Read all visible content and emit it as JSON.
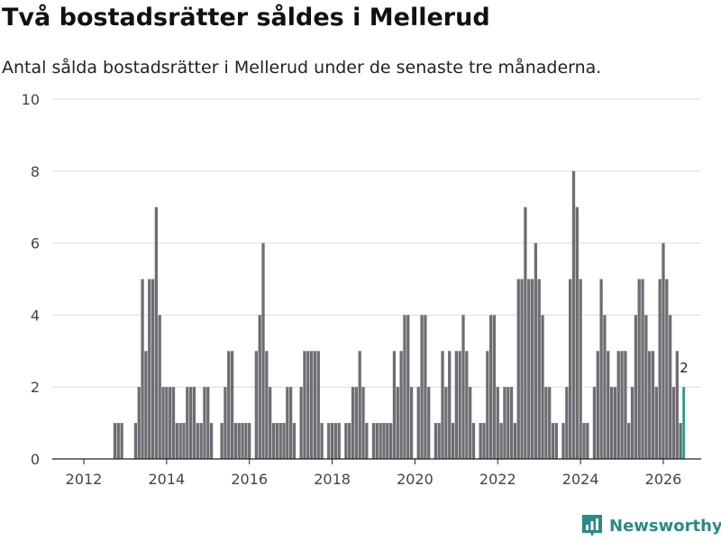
{
  "header": {
    "title": "Två bostadsrätter såldes i Mellerud",
    "subtitle": "Antal sålda bostadsrätter i Mellerud under de senaste tre månaderna."
  },
  "brand": {
    "name": "Newsworthy"
  },
  "colors": {
    "bar": "#6d6d73",
    "highlight": "#1a9b8c",
    "grid": "#dcdcdc",
    "axis": "#444444",
    "brand": "#2a8a86"
  },
  "chart_data": {
    "type": "bar",
    "title": "Två bostadsrätter såldes i Mellerud",
    "xlabel": "",
    "ylabel": "",
    "ylim": [
      0,
      10
    ],
    "yticks": [
      0,
      2,
      4,
      6,
      8,
      10
    ],
    "xticks": [
      "2012",
      "2014",
      "2016",
      "2018",
      "2020",
      "2022",
      "2024",
      "2026"
    ],
    "start_year": 2011,
    "start_month": 8,
    "highlight_label": "2",
    "values": [
      0,
      0,
      0,
      0,
      0,
      0,
      0,
      0,
      0,
      0,
      0,
      0,
      0,
      0,
      1,
      1,
      1,
      0,
      0,
      0,
      1,
      2,
      5,
      3,
      5,
      5,
      7,
      4,
      2,
      2,
      2,
      2,
      1,
      1,
      1,
      2,
      2,
      2,
      1,
      1,
      2,
      2,
      1,
      0,
      0,
      1,
      2,
      3,
      3,
      1,
      1,
      1,
      1,
      1,
      0,
      3,
      4,
      6,
      3,
      2,
      1,
      1,
      1,
      1,
      2,
      2,
      1,
      0,
      2,
      3,
      3,
      3,
      3,
      3,
      1,
      0,
      1,
      1,
      1,
      1,
      0,
      1,
      1,
      2,
      2,
      3,
      2,
      1,
      0,
      1,
      1,
      1,
      1,
      1,
      1,
      3,
      2,
      3,
      4,
      4,
      2,
      0,
      2,
      4,
      4,
      2,
      0,
      1,
      1,
      3,
      2,
      3,
      1,
      3,
      3,
      4,
      3,
      2,
      1,
      0,
      1,
      1,
      3,
      4,
      4,
      2,
      1,
      2,
      2,
      2,
      1,
      5,
      5,
      7,
      5,
      5,
      6,
      5,
      4,
      2,
      2,
      1,
      1,
      0,
      1,
      2,
      5,
      8,
      7,
      5,
      1,
      1,
      0,
      2,
      3,
      5,
      4,
      3,
      2,
      2,
      3,
      3,
      3,
      1,
      2,
      4,
      5,
      5,
      4,
      3,
      3,
      2,
      5,
      6,
      5,
      4,
      2,
      3,
      1,
      2
    ],
    "highlight_index": 179
  }
}
